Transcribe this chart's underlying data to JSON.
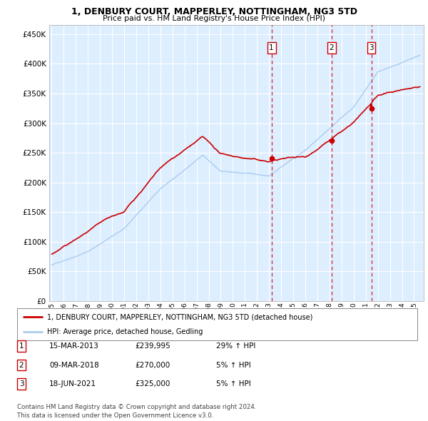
{
  "title": "1, DENBURY COURT, MAPPERLEY, NOTTINGHAM, NG3 5TD",
  "subtitle": "Price paid vs. HM Land Registry's House Price Index (HPI)",
  "ytick_values": [
    0,
    50000,
    100000,
    150000,
    200000,
    250000,
    300000,
    350000,
    400000,
    450000
  ],
  "ylim": [
    0,
    465000
  ],
  "xlim_start": 1994.8,
  "xlim_end": 2025.8,
  "background_color": "#ffffff",
  "plot_bg_color": "#ddeeff",
  "grid_color": "#ffffff",
  "legend_line1": "1, DENBURY COURT, MAPPERLEY, NOTTINGHAM, NG3 5TD (detached house)",
  "legend_line2": "HPI: Average price, detached house, Gedling",
  "sale_points": [
    {
      "label": "1",
      "date_num": 2013.2,
      "price": 239995
    },
    {
      "label": "2",
      "date_num": 2018.18,
      "price": 270000
    },
    {
      "label": "3",
      "date_num": 2021.46,
      "price": 325000
    }
  ],
  "table_rows": [
    [
      "1",
      "15-MAR-2013",
      "£239,995",
      "29% ↑ HPI"
    ],
    [
      "2",
      "09-MAR-2018",
      "£270,000",
      "5% ↑ HPI"
    ],
    [
      "3",
      "18-JUN-2021",
      "£325,000",
      "5% ↑ HPI"
    ]
  ],
  "footnote": "Contains HM Land Registry data © Crown copyright and database right 2024.\nThis data is licensed under the Open Government Licence v3.0.",
  "red_color": "#cc0000",
  "blue_color": "#aaccee"
}
